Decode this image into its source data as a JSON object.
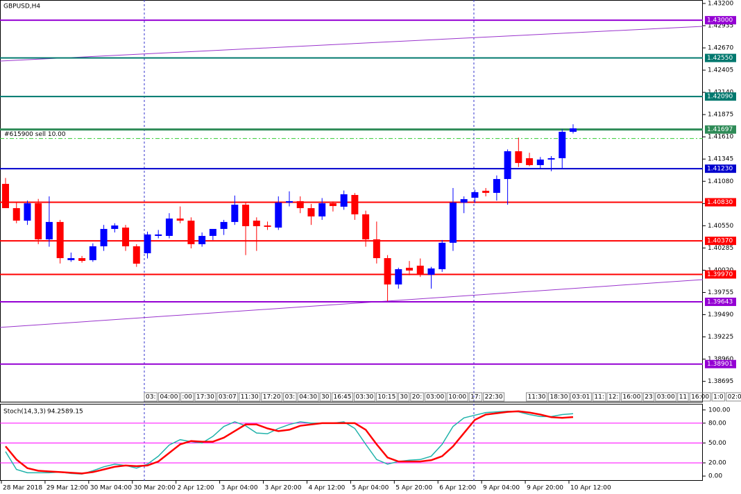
{
  "chart_data": [
    {
      "type": "candlestick",
      "title": "GBPUSD,H4",
      "categories": [
        "28 Mar 2018",
        null,
        null,
        null,
        "29 Mar 12:00",
        null,
        null,
        null,
        "30 Mar 04:00",
        null,
        null,
        null,
        "30 Mar 20:00",
        null,
        null,
        null,
        "2 Apr 12:00",
        null,
        null,
        null,
        "3 Apr 04:00",
        null,
        null,
        null,
        "3 Apr 20:00",
        null,
        null,
        null,
        "4 Apr 12:00",
        null,
        null,
        null,
        "5 Apr 04:00",
        null,
        null,
        null,
        "5 Apr 20:00",
        null,
        null,
        null,
        "6 Apr 12:00",
        null,
        null,
        null,
        "9 Apr 04:00",
        null,
        null,
        null,
        "9 Apr 20:00",
        null,
        null,
        null,
        "10 Apr 12:00"
      ],
      "open": [
        1.41049,
        1.4076,
        1.40611,
        1.40818,
        1.40388,
        1.40595,
        1.4014,
        1.40164,
        1.4014,
        1.40305,
        1.40512,
        1.40528,
        1.40305,
        1.40222,
        1.40429,
        1.40429,
        1.40636,
        1.40611,
        1.4033,
        1.40429,
        1.40512,
        1.40595,
        1.40801,
        1.40611,
        1.40553,
        1.40528,
        1.40826,
        1.40843,
        1.4076,
        1.40661,
        1.40818,
        1.40777,
        1.40917,
        1.40686,
        1.40388,
        1.40164,
        1.3985,
        1.40049,
        1.40074,
        1.39966,
        1.40032,
        1.40347,
        1.40826,
        1.40884,
        1.40967,
        1.40942,
        1.41107,
        1.41438,
        1.41355,
        1.41273,
        1.41339,
        1.41355,
        1.4167
      ],
      "high": [
        1.4112,
        1.4083,
        1.4085,
        1.4087,
        1.409,
        1.4062,
        1.4023,
        1.4019,
        1.4034,
        1.4056,
        1.4058,
        1.4056,
        1.4033,
        1.4048,
        1.405,
        1.407,
        1.4078,
        1.4065,
        1.4047,
        1.405,
        1.4062,
        1.4091,
        1.4083,
        1.4065,
        1.406,
        1.409,
        1.4096,
        1.409,
        1.4081,
        1.4088,
        1.4084,
        1.4097,
        1.4094,
        1.4073,
        1.406,
        1.402,
        1.4005,
        1.4013,
        1.4016,
        1.4006,
        1.4038,
        1.41,
        1.409,
        1.4098,
        1.41,
        1.4115,
        1.4146,
        1.416,
        1.4142,
        1.4137,
        1.4138,
        1.417,
        1.4176
      ],
      "low": [
        1.4076,
        1.4058,
        1.4056,
        1.4033,
        1.403,
        1.401,
        1.4012,
        1.4011,
        1.4012,
        1.4025,
        1.4047,
        1.4025,
        1.4006,
        1.4016,
        1.404,
        1.404,
        1.4058,
        1.4028,
        1.403,
        1.4038,
        1.4044,
        1.4056,
        1.402,
        1.4025,
        1.405,
        1.405,
        1.4078,
        1.407,
        1.4056,
        1.4062,
        1.4072,
        1.4074,
        1.4062,
        1.403,
        1.401,
        1.3965,
        1.398,
        1.3996,
        1.3994,
        1.398,
        1.4,
        1.4025,
        1.407,
        1.4082,
        1.409,
        1.4085,
        1.408,
        1.4125,
        1.4126,
        1.4123,
        1.412,
        1.4123,
        1.4165
      ],
      "close": [
        1.4076,
        1.40611,
        1.40818,
        1.40388,
        1.40595,
        1.40164,
        1.40164,
        1.40131,
        1.40305,
        1.40512,
        1.40553,
        1.40305,
        1.40098,
        1.40446,
        1.40446,
        1.40636,
        1.40611,
        1.4033,
        1.40429,
        1.40512,
        1.40595,
        1.40801,
        1.40545,
        1.40545,
        1.40537,
        1.40826,
        1.40843,
        1.4076,
        1.40661,
        1.40818,
        1.40785,
        1.40925,
        1.40686,
        1.40388,
        1.40164,
        1.3985,
        1.40032,
        1.40016,
        1.39966,
        1.40041,
        1.40347,
        1.40826,
        1.40867,
        1.4095,
        1.40942,
        1.41107,
        1.41438,
        1.41298,
        1.41273,
        1.41339,
        1.41355,
        1.4167,
        1.41711
      ],
      "up_color": "#0000ff",
      "down_color": "#ff0000",
      "ylim": [
        1.38444,
        1.43241
      ],
      "yticks": [
        {
          "value": 1.432,
          "label": "1.43200"
        },
        {
          "value": 1.42935,
          "label": "1.42935"
        },
        {
          "value": 1.4267,
          "label": "1.42670"
        },
        {
          "value": 1.42405,
          "label": "1.42405"
        },
        {
          "value": 1.4214,
          "label": "1.42140"
        },
        {
          "value": 1.41875,
          "label": "1.41875"
        },
        {
          "value": 1.4161,
          "label": "1.41610"
        },
        {
          "value": 1.41345,
          "label": "1.41345"
        },
        {
          "value": 1.4108,
          "label": "1.41080"
        },
        {
          "value": 1.40815,
          "label": "1.40815"
        },
        {
          "value": 1.4055,
          "label": "1.40550"
        },
        {
          "value": 1.40285,
          "label": "1.40285"
        },
        {
          "value": 1.4002,
          "label": "1.40020"
        },
        {
          "value": 1.39755,
          "label": "1.39755"
        },
        {
          "value": 1.3949,
          "label": "1.39490"
        },
        {
          "value": 1.39225,
          "label": "1.39225"
        },
        {
          "value": 1.3896,
          "label": "1.38960"
        },
        {
          "value": 1.38695,
          "label": "1.38695"
        }
      ],
      "levels": [
        {
          "value": 1.43,
          "label": "1.43000",
          "color": "#9400d3"
        },
        {
          "value": 1.4255,
          "label": "1.42550",
          "color": "#00786e"
        },
        {
          "value": 1.4209,
          "label": "1.42090",
          "color": "#00786e"
        },
        {
          "value": 1.41697,
          "label": "1.41697",
          "color": "#2e8b57"
        },
        {
          "value": 1.4123,
          "label": "1.41230",
          "color": "#0000cd"
        },
        {
          "value": 1.4083,
          "label": "1.40830",
          "color": "#ff0000"
        },
        {
          "value": 1.4037,
          "label": "1.40370",
          "color": "#ff0000"
        },
        {
          "value": 1.3997,
          "label": "1.39970",
          "color": "#ff0000"
        },
        {
          "value": 1.39643,
          "label": "1.39643",
          "color": "#9400d3"
        },
        {
          "value": 1.38901,
          "label": "1.38901",
          "color": "#9400d3"
        }
      ],
      "order": {
        "label": "#615900 sell 10.00",
        "value": 1.4159,
        "color": "#32cd32"
      },
      "trendlines": [
        {
          "values": [
            1.42513,
            1.42927
          ],
          "color": "#9932cc"
        },
        {
          "values": [
            1.39338,
            1.39908
          ],
          "color": "#9932cc"
        }
      ],
      "time_labels": [
        "03:",
        "04:00",
        ":00",
        "17:30",
        "03:07",
        "11:30",
        "17:20",
        "03:",
        "04:30",
        "30",
        "16:45",
        "03:30",
        "10:15",
        "30",
        "20:",
        "03:00",
        "10:00",
        "17:",
        "22:30",
        "11:30",
        "18:30",
        "03:01",
        "11:",
        "12:",
        "16:00",
        "23",
        "03:00",
        "11",
        "16:00",
        "1:0",
        "02:01",
        "0"
      ]
    },
    {
      "type": "line",
      "title": "Stoch(14,3,3)",
      "series": [
        {
          "color": "#20b2aa",
          "values": [
            37,
            10,
            5,
            5,
            5,
            6,
            4,
            3,
            8,
            14,
            18,
            16,
            12,
            18,
            30,
            47,
            55,
            52,
            50,
            60,
            75,
            82,
            76,
            65,
            64,
            72,
            78,
            82,
            80,
            80,
            80,
            82,
            72,
            48,
            25,
            18,
            22,
            24,
            25,
            30,
            48,
            75,
            88,
            92,
            96,
            97,
            98,
            97,
            93,
            90,
            90,
            93,
            94.25
          ]
        },
        {
          "color": "#ff0000",
          "values": [
            45,
            25,
            12,
            8,
            7,
            6,
            5,
            4,
            6,
            10,
            14,
            16,
            15,
            16,
            22,
            35,
            48,
            53,
            52,
            52,
            58,
            68,
            78,
            78,
            72,
            68,
            70,
            76,
            78,
            80,
            80,
            80,
            80,
            70,
            48,
            28,
            22,
            22,
            22,
            24,
            30,
            45,
            65,
            85,
            93,
            95,
            97,
            98,
            96,
            93,
            89,
            88,
            89.15
          ]
        }
      ],
      "ylim": [
        -7.2,
        108.2
      ],
      "yticks": [
        {
          "value": 100,
          "label": "100.00"
        },
        {
          "value": 80,
          "label": "80.00"
        },
        {
          "value": 50,
          "label": "50.00"
        },
        {
          "value": 20,
          "label": "20.00"
        },
        {
          "value": 0,
          "label": "0.00"
        }
      ],
      "levels": [
        80,
        50,
        20
      ],
      "level_color": "#ff00ff"
    }
  ]
}
